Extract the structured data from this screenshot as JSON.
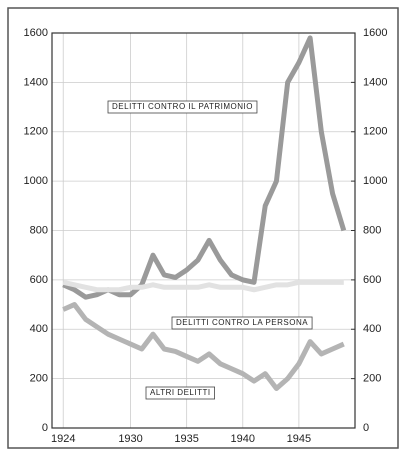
{
  "chart_data": {
    "type": "line",
    "x": [
      1924,
      1925,
      1926,
      1927,
      1928,
      1929,
      1930,
      1931,
      1932,
      1933,
      1934,
      1935,
      1936,
      1937,
      1938,
      1939,
      1940,
      1941,
      1942,
      1943,
      1944,
      1945,
      1946,
      1947,
      1948,
      1949
    ],
    "series": [
      {
        "name": "DELITTI CONTRO IL PATRIMONIO",
        "color": "#9a9a9a",
        "values": [
          580,
          560,
          530,
          540,
          560,
          540,
          540,
          580,
          700,
          620,
          610,
          640,
          680,
          760,
          680,
          620,
          600,
          590,
          900,
          1000,
          1400,
          1480,
          1580,
          1200,
          950,
          800
        ]
      },
      {
        "name": "DELITTI CONTRO LA PERSONA",
        "color": "#e2e2e2",
        "values": [
          590,
          580,
          570,
          560,
          560,
          560,
          570,
          570,
          580,
          570,
          570,
          570,
          570,
          580,
          570,
          570,
          570,
          560,
          570,
          580,
          580,
          590,
          590,
          590,
          590,
          590
        ]
      },
      {
        "name": "ALTRI DELITTI",
        "color": "#b4b4b4",
        "values": [
          480,
          500,
          440,
          410,
          380,
          360,
          340,
          320,
          380,
          320,
          310,
          290,
          270,
          300,
          260,
          240,
          220,
          190,
          220,
          160,
          200,
          260,
          350,
          300,
          320,
          340
        ]
      }
    ],
    "xlim": [
      1923,
      1950
    ],
    "xticks": [
      1924,
      1930,
      1935,
      1940,
      1945
    ],
    "ylim": [
      0,
      1600
    ],
    "yticks": [
      0,
      200,
      400,
      600,
      800,
      1000,
      1200,
      1400,
      1600
    ],
    "y2lim": [
      0,
      1600
    ],
    "y2ticks": [
      0,
      200,
      400,
      600,
      800,
      1000,
      1200,
      1400,
      1600
    ],
    "grid": true
  }
}
